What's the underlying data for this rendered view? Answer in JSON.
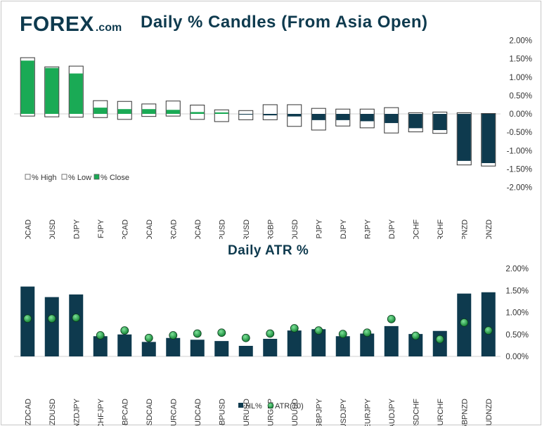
{
  "logo": {
    "brand": "FOREX",
    "suffix": ".com"
  },
  "colors": {
    "navy": "#0e3a4e",
    "green": "#1aaa55",
    "bar": "#0e3a4e",
    "dot": "#1b8a3c"
  },
  "chart_data": [
    {
      "type": "bar",
      "subtype": "candlestick",
      "title": "Daily % Candles (From Asia Open)",
      "categories": [
        "NZDCAD",
        "NZDUSD",
        "NZDJPY",
        "CHFJPY",
        "GBPCAD",
        "USDCAD",
        "EURCAD",
        "AUDCAD",
        "GBPUSD",
        "EURUSD",
        "EURGBP",
        "AUDUSD",
        "GBPJPY",
        "USDJPY",
        "EURJPY",
        "AUDJPY",
        "USDCHF",
        "EURCHF",
        "GBPNZD",
        "AUDNZD"
      ],
      "series": [
        {
          "name": "% High",
          "values": [
            1.53,
            1.28,
            1.3,
            0.36,
            0.34,
            0.27,
            0.35,
            0.24,
            0.11,
            0.09,
            0.25,
            0.25,
            0.15,
            0.13,
            0.13,
            0.17,
            0.03,
            0.05,
            0.03,
            0.01
          ]
        },
        {
          "name": "% Low",
          "values": [
            -0.06,
            -0.08,
            -0.09,
            -0.1,
            -0.15,
            -0.07,
            -0.06,
            -0.15,
            -0.21,
            -0.16,
            -0.16,
            -0.34,
            -0.44,
            -0.33,
            -0.38,
            -0.52,
            -0.49,
            -0.53,
            -1.39,
            -1.42
          ]
        },
        {
          "name": "% Close",
          "values": [
            1.45,
            1.25,
            1.1,
            0.17,
            0.13,
            0.13,
            0.11,
            0.05,
            0.04,
            -0.02,
            -0.04,
            -0.07,
            -0.17,
            -0.17,
            -0.2,
            -0.25,
            -0.39,
            -0.44,
            -1.28,
            -1.34
          ]
        }
      ],
      "ylim": [
        -2.0,
        2.0
      ],
      "yticks": [
        "2.00%",
        "1.50%",
        "1.00%",
        "0.50%",
        "0.00%",
        "-0.50%",
        "-1.00%",
        "-1.50%",
        "-2.00%"
      ],
      "legend": [
        "% High",
        "% Low",
        "% Close"
      ],
      "legend_position": "bottom-left"
    },
    {
      "type": "bar",
      "title": "Daily ATR %",
      "categories": [
        "NZDCAD",
        "NZDUSD",
        "NZDJPY",
        "CHFJPY",
        "GBPCAD",
        "USDCAD",
        "EURCAD",
        "AUDCAD",
        "GBPUSD",
        "EURUSD",
        "EURGBP",
        "AUDUSD",
        "GBPJPY",
        "USDJPY",
        "EURJPY",
        "AUDJPY",
        "USDCHF",
        "EURCHF",
        "GBPNZD",
        "AUDNZD"
      ],
      "series": [
        {
          "name": "HL%",
          "type": "bar",
          "values": [
            1.59,
            1.35,
            1.41,
            0.46,
            0.5,
            0.33,
            0.42,
            0.38,
            0.35,
            0.24,
            0.4,
            0.59,
            0.62,
            0.46,
            0.52,
            0.69,
            0.51,
            0.58,
            1.43,
            1.46
          ]
        },
        {
          "name": "ATR(10)",
          "type": "scatter",
          "values": [
            0.86,
            0.86,
            0.88,
            0.48,
            0.59,
            0.42,
            0.48,
            0.52,
            0.54,
            0.42,
            0.52,
            0.64,
            0.59,
            0.51,
            0.54,
            0.85,
            0.47,
            0.39,
            0.77,
            0.59
          ]
        }
      ],
      "ylim": [
        0,
        2.0
      ],
      "yticks": [
        "2.00%",
        "1.50%",
        "1.00%",
        "0.50%",
        "0.00%"
      ],
      "legend": [
        "HL%",
        "ATR(10)"
      ],
      "legend_position": "bottom"
    }
  ]
}
